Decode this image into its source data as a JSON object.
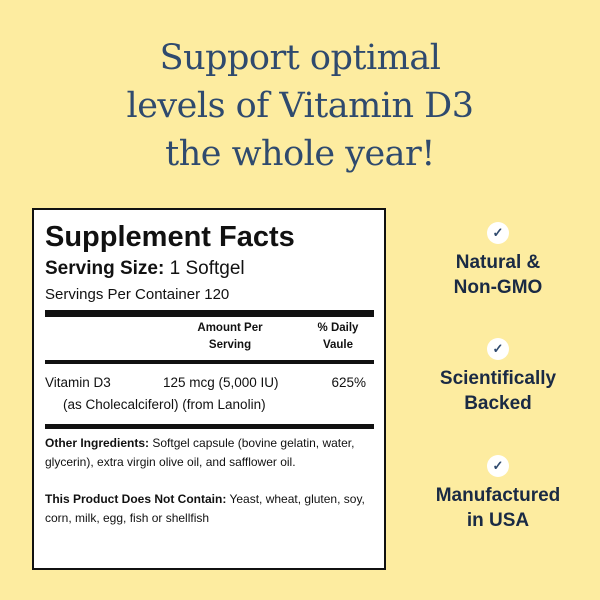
{
  "headline": {
    "line1": "Support optimal",
    "line2": "levels of Vitamin D3",
    "line3": "the whole year!"
  },
  "facts": {
    "title": "Supplement Facts",
    "serving_label": "Serving Size:",
    "serving_value": "1 Softgel",
    "servings_per_container": "Servings Per Container 120",
    "col_amount_1": "Amount Per",
    "col_amount_2": "Serving",
    "col_dv_1": "% Daily",
    "col_dv_2": "Vaule",
    "nutrient_name": "Vitamin D3",
    "nutrient_amount": "125 mcg (5,000 IU)",
    "nutrient_dv": "625%",
    "nutrient_source": "(as Cholecalciferol) (from Lanolin)",
    "other_label": "Other Ingredients:",
    "other_text": " Softgel capsule (bovine gelatin, water, glycerin), extra virgin olive oil, and safflower oil.",
    "not_contain_label": "This Product Does Not Contain:",
    "not_contain_text": " Yeast, wheat, gluten, soy, corn, milk, egg, fish or shellfish"
  },
  "benefits": [
    {
      "line1": "Natural &",
      "line2": "Non-GMO",
      "icon": "check-icon"
    },
    {
      "line1": "Scientifically",
      "line2": "Backed",
      "icon": "check-icon"
    },
    {
      "line1": "Manufactured",
      "line2": "in USA",
      "icon": "check-icon"
    }
  ],
  "colors": {
    "background": "#fdeca0",
    "headline": "#2f4a6e",
    "benefit_text": "#1a2a44"
  }
}
